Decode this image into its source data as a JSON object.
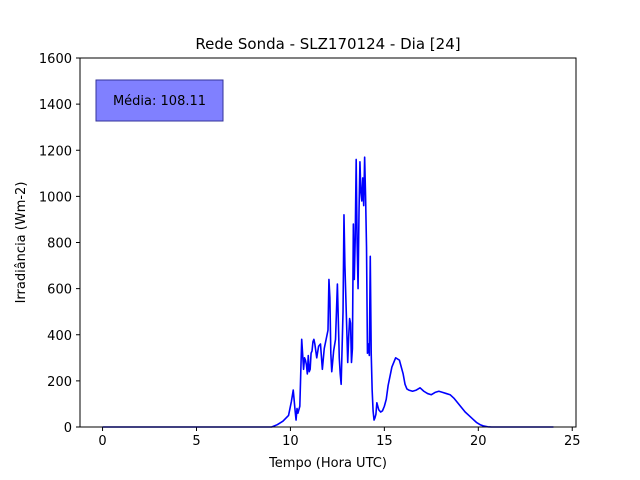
{
  "chart_data": {
    "type": "line",
    "title": "Rede Sonda - SLZ170124 - Dia [24]",
    "xlabel": "Tempo (Hora UTC)",
    "ylabel": "Irradiância (Wm-2)",
    "xlim": [
      -1.2,
      25.2
    ],
    "ylim": [
      0,
      1600
    ],
    "xticks": [
      0,
      5,
      10,
      15,
      20,
      25
    ],
    "yticks": [
      0,
      200,
      400,
      600,
      800,
      1000,
      1200,
      1400,
      1600
    ],
    "grid": false,
    "line_color": "#0000ff",
    "annotation": {
      "text": "Média: 108.11",
      "box_color": "#8080ff",
      "placement": "top-left"
    },
    "series": [
      {
        "x": [
          0,
          9.0,
          9.3,
          9.6,
          9.9,
          10.05,
          10.15,
          10.25,
          10.3,
          10.35,
          10.4,
          10.5,
          10.6,
          10.7,
          10.75,
          10.8,
          10.85,
          10.9,
          10.95,
          11.0,
          11.05,
          11.1,
          11.15,
          11.2,
          11.25,
          11.3,
          11.35,
          11.4,
          11.5,
          11.6,
          11.7,
          11.8,
          11.9,
          12.0,
          12.05,
          12.1,
          12.15,
          12.2,
          12.3,
          12.4,
          12.5,
          12.55,
          12.6,
          12.65,
          12.7,
          12.8,
          12.85,
          12.9,
          13.0,
          13.05,
          13.1,
          13.15,
          13.2,
          13.25,
          13.3,
          13.35,
          13.4,
          13.45,
          13.5,
          13.55,
          13.6,
          13.65,
          13.7,
          13.75,
          13.8,
          13.85,
          13.9,
          13.95,
          14.0,
          14.05,
          14.1,
          14.15,
          14.2,
          14.25,
          14.3,
          14.35,
          14.4,
          14.45,
          14.5,
          14.55,
          14.6,
          14.7,
          14.8,
          14.9,
          15.0,
          15.1,
          15.2,
          15.4,
          15.6,
          15.8,
          16.0,
          16.1,
          16.2,
          16.3,
          16.5,
          16.7,
          16.9,
          17.1,
          17.3,
          17.5,
          17.7,
          17.9,
          18.1,
          18.3,
          18.5,
          18.7,
          18.9,
          19.1,
          19.3,
          19.5,
          19.7,
          19.9,
          20.1,
          20.3,
          20.5,
          20.7,
          20.9,
          21.1,
          21.3,
          22.0,
          24.0
        ],
        "y": [
          0,
          0,
          10,
          25,
          50,
          110,
          160,
          70,
          30,
          80,
          60,
          90,
          380,
          250,
          300,
          290,
          270,
          230,
          310,
          240,
          250,
          320,
          330,
          370,
          380,
          360,
          330,
          300,
          350,
          360,
          250,
          340,
          380,
          420,
          640,
          560,
          320,
          240,
          330,
          380,
          620,
          460,
          300,
          230,
          185,
          500,
          920,
          700,
          420,
          280,
          390,
          470,
          450,
          280,
          340,
          880,
          640,
          820,
          1160,
          800,
          600,
          930,
          1150,
          1020,
          980,
          1080,
          960,
          1170,
          1000,
          780,
          320,
          360,
          310,
          740,
          320,
          160,
          70,
          30,
          40,
          55,
          105,
          75,
          65,
          70,
          90,
          120,
          180,
          260,
          300,
          290,
          230,
          185,
          165,
          160,
          155,
          160,
          170,
          155,
          145,
          140,
          150,
          155,
          150,
          145,
          140,
          125,
          105,
          85,
          65,
          50,
          35,
          20,
          10,
          4,
          1,
          0,
          0,
          0,
          0,
          0,
          0
        ]
      }
    ]
  }
}
